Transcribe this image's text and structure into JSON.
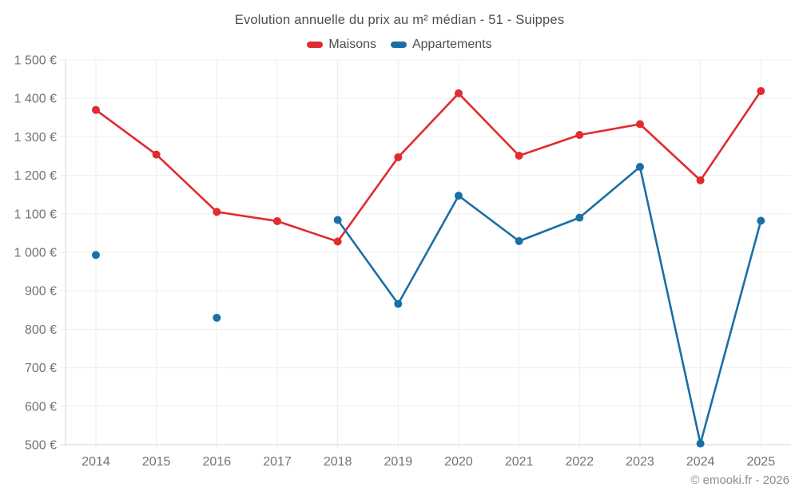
{
  "page": {
    "background": "#ffffff"
  },
  "legend": {
    "items": [
      {
        "label": "Maisons"
      },
      {
        "label": "Appartements"
      }
    ]
  },
  "footer": {
    "copyright": "© emooki.fr - 2026"
  },
  "chart_data": {
    "type": "line",
    "title": "Evolution annuelle du prix au m² médian - 51 - Suippes",
    "x_labels": [
      "2014",
      "2015",
      "2016",
      "2017",
      "2018",
      "2019",
      "2020",
      "2021",
      "2022",
      "2023",
      "2024",
      "2025"
    ],
    "series": [
      {
        "name": "Maisons",
        "color": "#e02b2f",
        "values": [
          1370,
          1254,
          1105,
          1081,
          1028,
          1247,
          1413,
          1251,
          1305,
          1333,
          1187,
          1419
        ]
      },
      {
        "name": "Appartements",
        "color": "#1a6fa5",
        "values": [
          993,
          null,
          830,
          null,
          1084,
          866,
          1147,
          1029,
          1090,
          1222,
          503,
          1082
        ]
      }
    ],
    "ylim": [
      500,
      1500
    ],
    "y_tick_step": 100,
    "y_suffix": "€",
    "grid": true,
    "legend_position": "top",
    "grid_color": "#ededed",
    "axis_color": "#d6d6d6",
    "tick_label_color": "#737373",
    "marker_radius": 5,
    "line_width": 2.6
  }
}
